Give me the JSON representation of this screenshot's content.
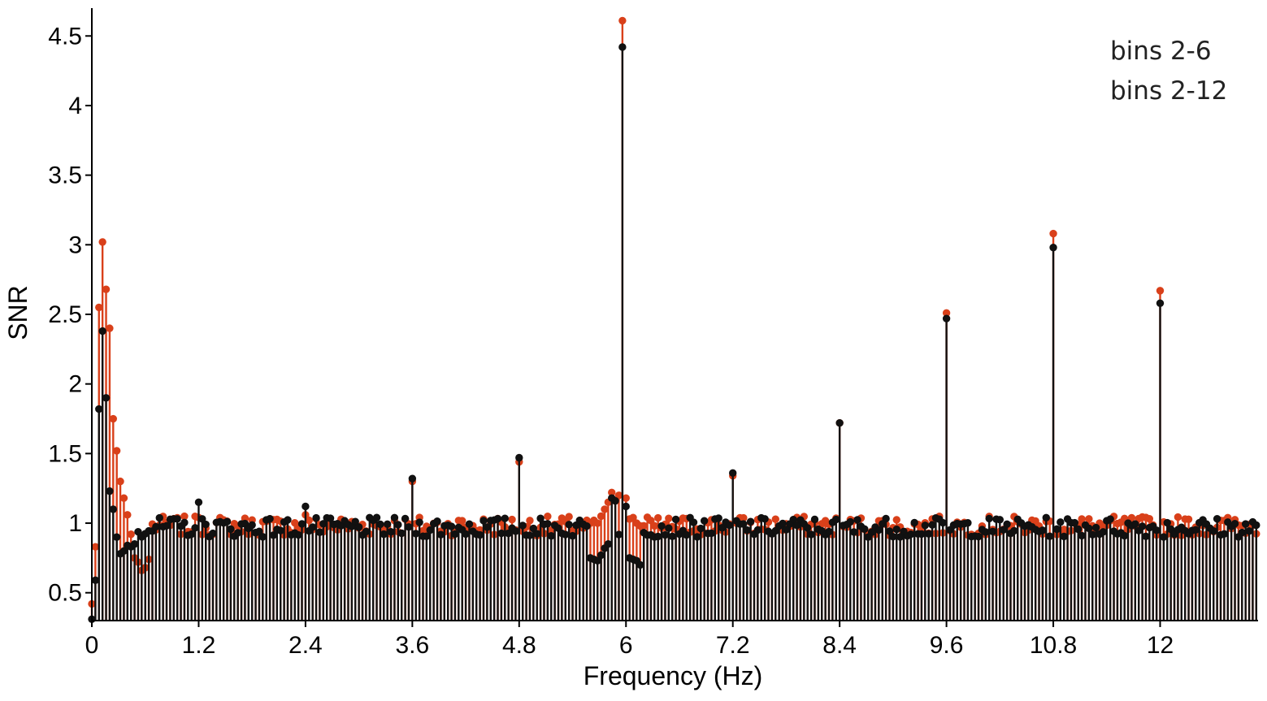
{
  "chart_data": {
    "type": "stem",
    "xlabel": "Frequency (Hz)",
    "ylabel": "SNR",
    "xlim": [
      0,
      13.1
    ],
    "ylim": [
      0.3,
      4.7
    ],
    "x_ticks": [
      0,
      1.2,
      2.4,
      3.6,
      4.8,
      6,
      7.2,
      8.4,
      9.6,
      10.8,
      12
    ],
    "x_tick_labels": [
      "0",
      "1.2",
      "2.4",
      "3.6",
      "4.8",
      "6",
      "7.2",
      "8.4",
      "9.6",
      "10.8",
      "12"
    ],
    "y_ticks": [
      0.5,
      1,
      1.5,
      2,
      2.5,
      3,
      3.5,
      4,
      4.5
    ],
    "y_tick_labels": [
      "0.5",
      "1",
      "1.5",
      "2",
      "2.5",
      "3",
      "3.5",
      "4",
      "4.5"
    ],
    "legend": {
      "position": "top-right",
      "entries": [
        "bins 2-6",
        "bins 2-12"
      ]
    },
    "bin_width_hz": 0.04,
    "series": [
      {
        "name": "bins 2-6",
        "color": "#d9401a",
        "peaks": [
          {
            "x": 0.0,
            "y": 0.42
          },
          {
            "x": 0.04,
            "y": 0.83
          },
          {
            "x": 0.08,
            "y": 2.55
          },
          {
            "x": 0.12,
            "y": 3.02
          },
          {
            "x": 0.16,
            "y": 2.68
          },
          {
            "x": 0.2,
            "y": 2.4
          },
          {
            "x": 0.24,
            "y": 1.75
          },
          {
            "x": 0.28,
            "y": 1.52
          },
          {
            "x": 0.32,
            "y": 1.3
          },
          {
            "x": 0.36,
            "y": 1.18
          },
          {
            "x": 0.4,
            "y": 1.06
          },
          {
            "x": 0.44,
            "y": 0.92
          },
          {
            "x": 0.48,
            "y": 0.75
          },
          {
            "x": 0.52,
            "y": 0.72
          },
          {
            "x": 0.56,
            "y": 0.66
          },
          {
            "x": 0.6,
            "y": 0.68
          },
          {
            "x": 0.64,
            "y": 0.74
          },
          {
            "x": 1.2,
            "y": 1.04
          },
          {
            "x": 2.4,
            "y": 1.06
          },
          {
            "x": 3.6,
            "y": 1.3
          },
          {
            "x": 4.8,
            "y": 1.44
          },
          {
            "x": 5.6,
            "y": 1.0
          },
          {
            "x": 5.64,
            "y": 1.02
          },
          {
            "x": 5.68,
            "y": 1.0
          },
          {
            "x": 5.72,
            "y": 1.05
          },
          {
            "x": 5.76,
            "y": 1.1
          },
          {
            "x": 5.8,
            "y": 1.15
          },
          {
            "x": 5.84,
            "y": 1.22
          },
          {
            "x": 5.88,
            "y": 1.16
          },
          {
            "x": 5.92,
            "y": 1.2
          },
          {
            "x": 5.96,
            "y": 4.61
          },
          {
            "x": 6.0,
            "y": 1.18
          },
          {
            "x": 6.04,
            "y": 1.03
          },
          {
            "x": 6.08,
            "y": 1.04
          },
          {
            "x": 6.12,
            "y": 1.0
          },
          {
            "x": 6.16,
            "y": 0.98
          },
          {
            "x": 7.2,
            "y": 1.34
          },
          {
            "x": 8.4,
            "y": 1.72
          },
          {
            "x": 9.6,
            "y": 2.51
          },
          {
            "x": 10.8,
            "y": 3.08
          },
          {
            "x": 12.0,
            "y": 2.67
          }
        ]
      },
      {
        "name": "bins 2-12",
        "color": "#111111",
        "peaks": [
          {
            "x": 0.0,
            "y": 0.31
          },
          {
            "x": 0.04,
            "y": 0.59
          },
          {
            "x": 0.08,
            "y": 1.82
          },
          {
            "x": 0.12,
            "y": 2.38
          },
          {
            "x": 0.16,
            "y": 1.9
          },
          {
            "x": 0.2,
            "y": 1.23
          },
          {
            "x": 0.24,
            "y": 1.1
          },
          {
            "x": 0.28,
            "y": 0.9
          },
          {
            "x": 0.32,
            "y": 0.78
          },
          {
            "x": 0.36,
            "y": 0.8
          },
          {
            "x": 0.4,
            "y": 0.84
          },
          {
            "x": 0.44,
            "y": 0.83
          },
          {
            "x": 0.48,
            "y": 0.85
          },
          {
            "x": 1.2,
            "y": 1.15
          },
          {
            "x": 2.4,
            "y": 1.12
          },
          {
            "x": 3.6,
            "y": 1.32
          },
          {
            "x": 4.8,
            "y": 1.47
          },
          {
            "x": 5.6,
            "y": 0.75
          },
          {
            "x": 5.64,
            "y": 0.74
          },
          {
            "x": 5.68,
            "y": 0.73
          },
          {
            "x": 5.72,
            "y": 0.77
          },
          {
            "x": 5.76,
            "y": 0.82
          },
          {
            "x": 5.8,
            "y": 0.85
          },
          {
            "x": 5.84,
            "y": 1.18
          },
          {
            "x": 5.88,
            "y": 1.16
          },
          {
            "x": 5.96,
            "y": 4.42
          },
          {
            "x": 6.0,
            "y": 1.12
          },
          {
            "x": 6.04,
            "y": 0.75
          },
          {
            "x": 6.08,
            "y": 0.74
          },
          {
            "x": 6.12,
            "y": 0.73
          },
          {
            "x": 6.16,
            "y": 0.7
          },
          {
            "x": 7.2,
            "y": 1.36
          },
          {
            "x": 8.4,
            "y": 1.72
          },
          {
            "x": 9.6,
            "y": 2.47
          },
          {
            "x": 10.8,
            "y": 2.98
          },
          {
            "x": 12.0,
            "y": 2.58
          }
        ]
      }
    ]
  }
}
